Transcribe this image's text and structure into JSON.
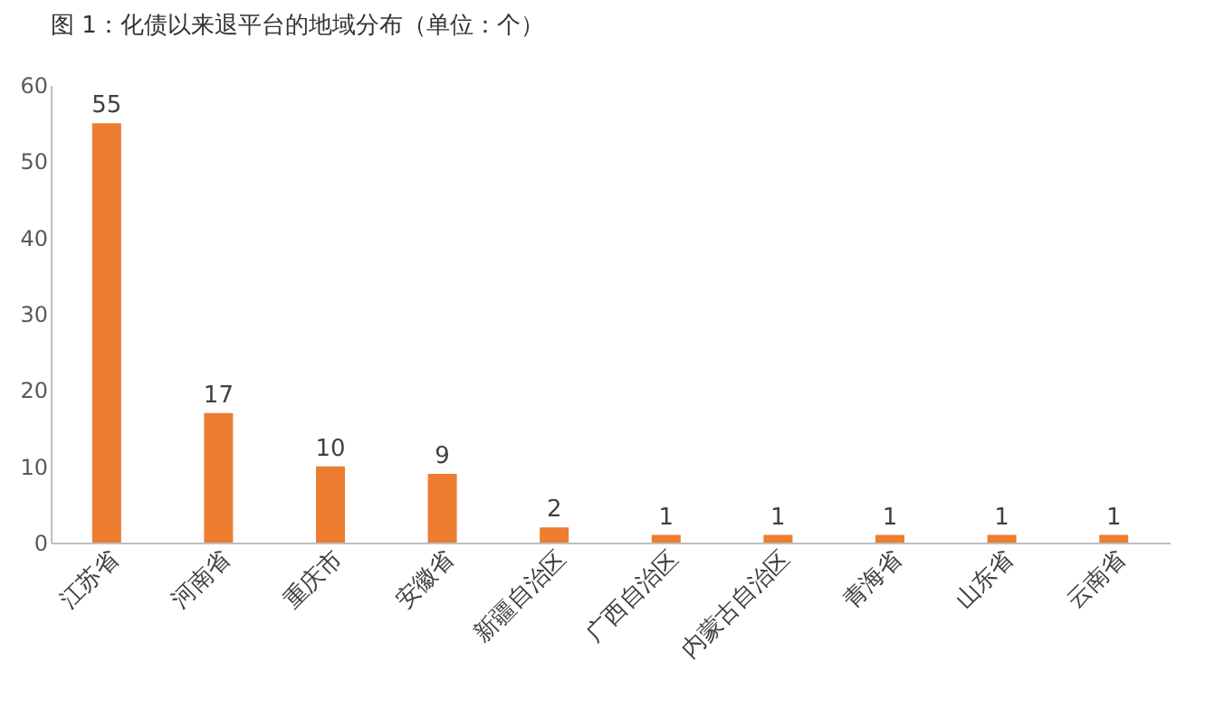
{
  "chart_data": {
    "type": "bar",
    "title": "图 1：化债以来退平台的地域分布（单位：个）",
    "categories": [
      "江苏省",
      "河南省",
      "重庆市",
      "安徽省",
      "新疆自治区",
      "广西自治区",
      "内蒙古自治区",
      "青海省",
      "山东省",
      "云南省"
    ],
    "values": [
      55,
      17,
      10,
      9,
      2,
      1,
      1,
      1,
      1,
      1
    ],
    "color": "#ed7d31",
    "ylim": [
      0,
      60
    ],
    "yticks": [
      0,
      10,
      20,
      30,
      40,
      50,
      60
    ],
    "grid": false,
    "data_labels": true
  }
}
